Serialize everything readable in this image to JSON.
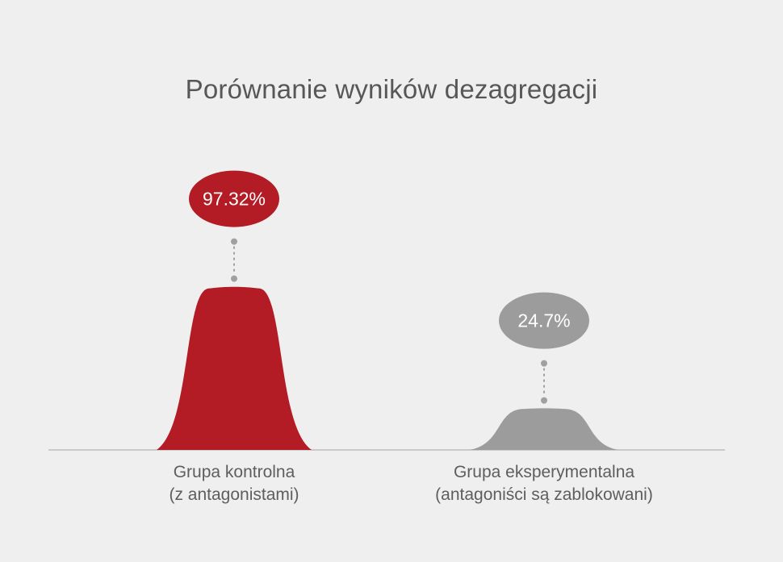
{
  "chart_data": {
    "type": "area",
    "title": "Porównanie wyników dezagregacji",
    "categories": [
      [
        "Grupa kontrolna",
        "(z antagonistami)"
      ],
      [
        "Grupa eksperymentalna",
        "(antagoniści są zablokowani)"
      ]
    ],
    "values": [
      97.32,
      24.7
    ],
    "value_labels": [
      "97.32%",
      "24.7%"
    ],
    "unit": "%",
    "ylim": [
      0,
      100
    ],
    "grid": false,
    "legend": "none",
    "colors": [
      "#b31b25",
      "#9c9c9c"
    ]
  },
  "style": {
    "background": "#efefef",
    "baseline_color": "#bdbdbd",
    "connector_color": "#a0a0a0",
    "label_text_color": "#ffffff"
  }
}
